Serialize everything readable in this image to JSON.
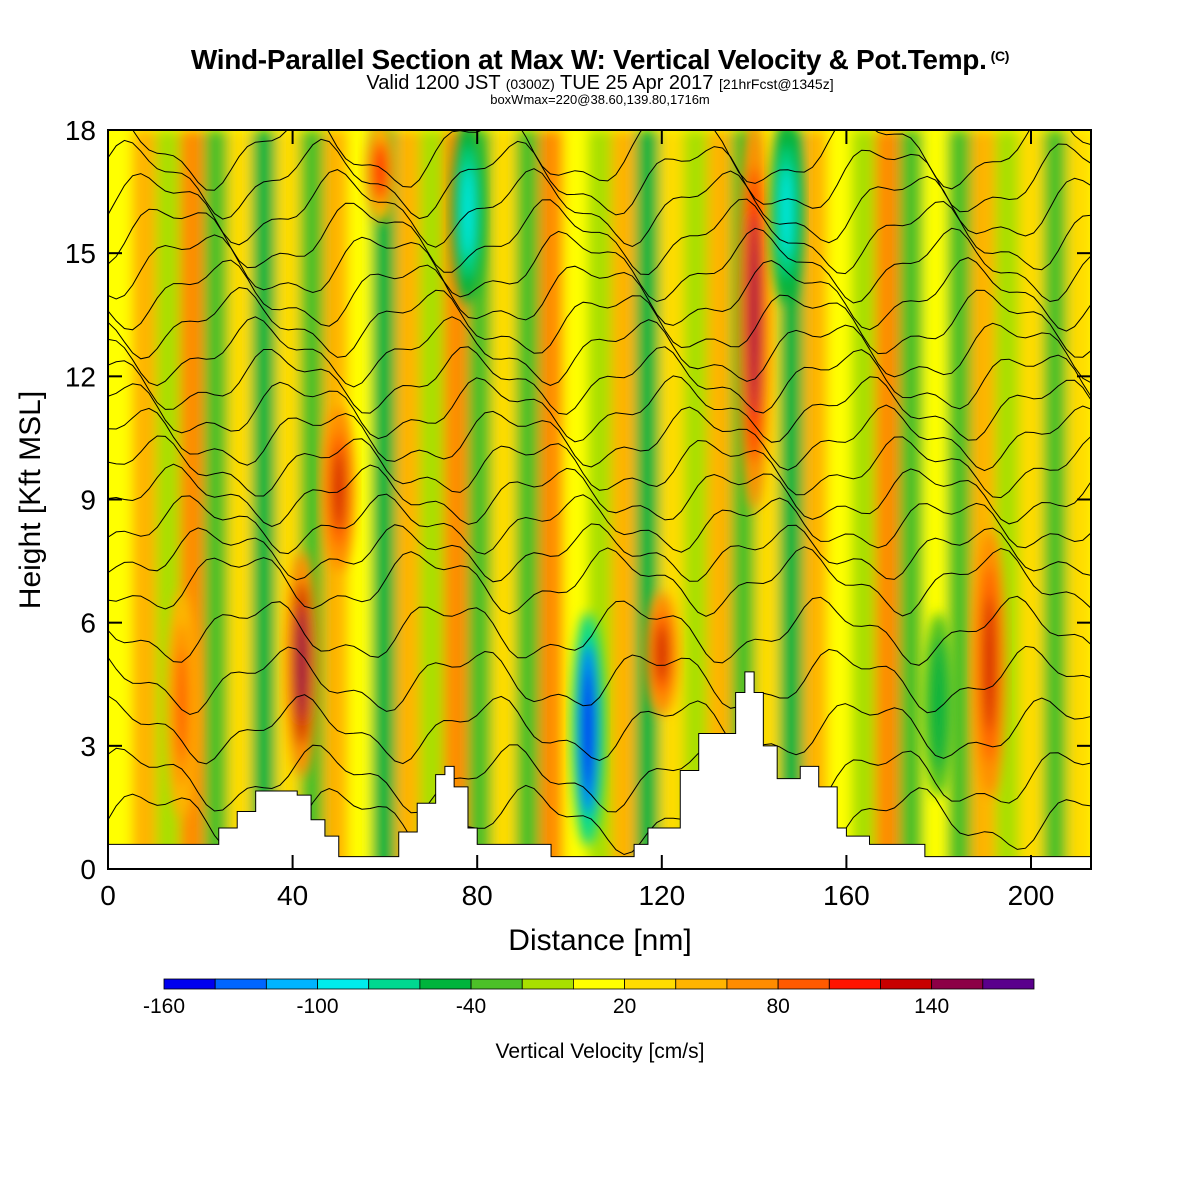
{
  "title": {
    "main": "Wind-Parallel Section at Max W: Vertical Velocity & Pot.Temp.",
    "main_sup": "(C)",
    "valid_prefix": "Valid 1200 JST",
    "valid_utc": "(0300Z)",
    "valid_date": "TUE 25 Apr 2017",
    "fcst": "[21hrFcst@1345z]",
    "box": "boxWmax=220@38.60,139.80,1716m"
  },
  "chart_data": {
    "type": "heatmap",
    "xlabel": "Distance [nm]",
    "ylabel": "Height [Kft MSL]",
    "xlim": [
      0,
      213
    ],
    "ylim": [
      0,
      18
    ],
    "x_ticks": [
      0,
      40,
      80,
      120,
      160,
      200
    ],
    "x_tick_labels": [
      "0",
      "40",
      "80",
      "120",
      "160",
      "200"
    ],
    "y_ticks": [
      0,
      3,
      6,
      9,
      12,
      15,
      18
    ],
    "y_tick_labels": [
      "0",
      "3",
      "6",
      "9",
      "12",
      "15",
      "18"
    ],
    "colorbar": {
      "label": "Vertical Velocity [cm/s]",
      "tick_labels": [
        "-160",
        "-100",
        "-40",
        "20",
        "80",
        "140"
      ],
      "colors": [
        "#0000ee",
        "#0066ff",
        "#00b4ff",
        "#00ecec",
        "#00d890",
        "#00b43c",
        "#4cc028",
        "#a8e000",
        "#ffff00",
        "#ffdc00",
        "#ffb400",
        "#ff8c00",
        "#ff5a00",
        "#ff1400",
        "#c80000",
        "#8c0046",
        "#5a008c"
      ]
    },
    "vertical_velocity_features_cm_s": [
      {
        "x": 16,
        "z_range": [
          1.5,
          6.5
        ],
        "value": 80
      },
      {
        "x": 42,
        "z_range": [
          2.5,
          7.5
        ],
        "value": 150
      },
      {
        "x": 50,
        "z_range": [
          7.5,
          11
        ],
        "value": 120
      },
      {
        "x": 59,
        "z_range": [
          16,
          18
        ],
        "value": 110
      },
      {
        "x": 78,
        "z_range": [
          14,
          18
        ],
        "value": -100
      },
      {
        "x": 104,
        "z_range": [
          0.8,
          6
        ],
        "value": -160
      },
      {
        "x": 120,
        "z_range": [
          4,
          6.5
        ],
        "value": 120
      },
      {
        "x": 140,
        "z_range": [
          9,
          18
        ],
        "value": 140
      },
      {
        "x": 147,
        "z_range": [
          14,
          18
        ],
        "value": -100
      },
      {
        "x": 180,
        "z_range": [
          2,
          6
        ],
        "value": -60
      },
      {
        "x": 191,
        "z_range": [
          2,
          8
        ],
        "value": 120
      }
    ],
    "terrain_height_kft": [
      {
        "x": 0,
        "z": 0.6
      },
      {
        "x": 22,
        "z": 0.6
      },
      {
        "x": 24,
        "z": 1.0
      },
      {
        "x": 28,
        "z": 1.4
      },
      {
        "x": 32,
        "z": 1.9
      },
      {
        "x": 37,
        "z": 1.9
      },
      {
        "x": 41,
        "z": 1.8
      },
      {
        "x": 44,
        "z": 1.2
      },
      {
        "x": 47,
        "z": 0.8
      },
      {
        "x": 50,
        "z": 0.3
      },
      {
        "x": 60,
        "z": 0.3
      },
      {
        "x": 63,
        "z": 0.9
      },
      {
        "x": 67,
        "z": 1.6
      },
      {
        "x": 71,
        "z": 2.3
      },
      {
        "x": 73,
        "z": 2.5
      },
      {
        "x": 75,
        "z": 2.0
      },
      {
        "x": 78,
        "z": 1.0
      },
      {
        "x": 80,
        "z": 0.6
      },
      {
        "x": 91,
        "z": 0.6
      },
      {
        "x": 96,
        "z": 0.3
      },
      {
        "x": 112,
        "z": 0.3
      },
      {
        "x": 114,
        "z": 0.6
      },
      {
        "x": 117,
        "z": 1.0
      },
      {
        "x": 120,
        "z": 1.0
      },
      {
        "x": 124,
        "z": 2.4
      },
      {
        "x": 128,
        "z": 3.3
      },
      {
        "x": 133,
        "z": 3.3
      },
      {
        "x": 136,
        "z": 4.3
      },
      {
        "x": 138,
        "z": 4.8
      },
      {
        "x": 140,
        "z": 4.3
      },
      {
        "x": 142,
        "z": 3.0
      },
      {
        "x": 145,
        "z": 2.2
      },
      {
        "x": 150,
        "z": 2.5
      },
      {
        "x": 154,
        "z": 2.0
      },
      {
        "x": 158,
        "z": 1.0
      },
      {
        "x": 160,
        "z": 0.8
      },
      {
        "x": 165,
        "z": 0.6
      },
      {
        "x": 175,
        "z": 0.6
      },
      {
        "x": 177,
        "z": 0.3
      },
      {
        "x": 213,
        "z": 0.3
      }
    ]
  }
}
